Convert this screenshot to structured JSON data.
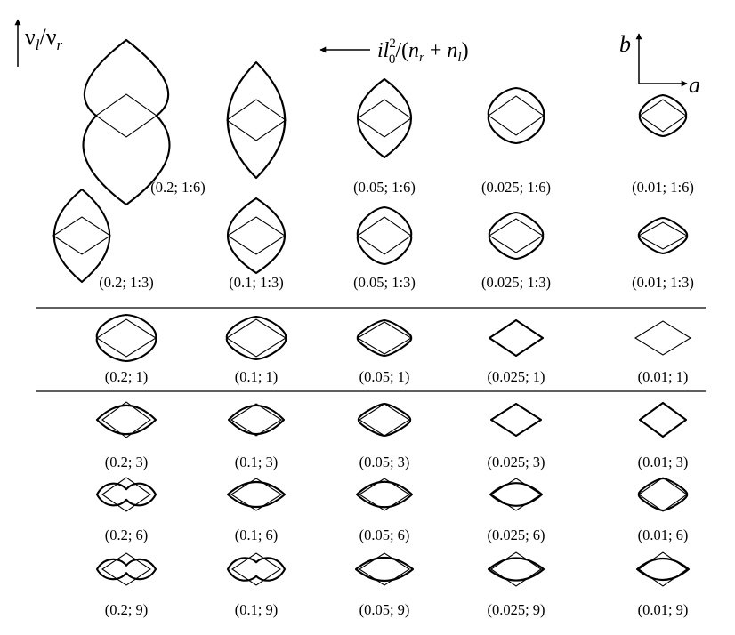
{
  "header": {
    "vertical_axis": {
      "nu": "ν",
      "l": "l",
      "slash": "/",
      "r": "r"
    },
    "horizontal_axis": {
      "i": "i",
      "l": "l",
      "zero": "0",
      "two": "2",
      "open": "/(",
      "n1": "n",
      "r": "r",
      "plus": " + ",
      "n2": "n",
      "l2": "l",
      "close": ")"
    },
    "orientation": {
      "a": "a",
      "b": "b"
    }
  },
  "rows": [
    {
      "labels": [
        "(0.2; 1:6)",
        "(0.05; 1:6)",
        "(0.025; 1:6)",
        "(0.01; 1:6)"
      ]
    },
    {
      "labels": [
        "(0.2; 1:3)",
        "(0.1; 1:3)",
        "(0.05; 1:3)",
        "(0.025; 1:3)",
        "(0.01; 1:3)"
      ]
    },
    {
      "labels": [
        "(0.2; 1)",
        "(0.1; 1)",
        "(0.05; 1)",
        "(0.025; 1)",
        "(0.01; 1)"
      ]
    },
    {
      "labels": [
        "(0.2; 3)",
        "(0.1; 3)",
        "(0.05; 3)",
        "(0.025; 3)",
        "(0.01; 3)"
      ]
    },
    {
      "labels": [
        "(0.2; 6)",
        "(0.1; 6)",
        "(0.05; 6)",
        "(0.025; 6)",
        "(0.01; 6)"
      ]
    },
    {
      "labels": [
        "(0.2; 9)",
        "(0.1; 9)",
        "(0.05; 9)",
        "(0.025; 9)",
        "(0.01; 9)"
      ]
    }
  ]
}
